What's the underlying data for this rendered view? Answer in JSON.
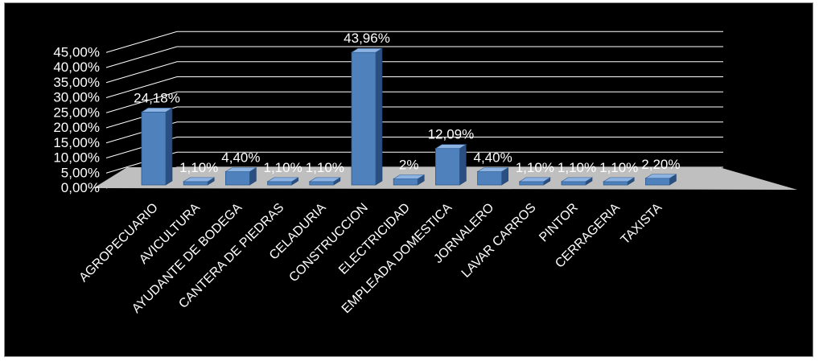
{
  "chart_data": {
    "type": "bar",
    "categories": [
      "AGROPECUARIO",
      "AVICULTURA",
      "AYUDANTE DE BODEGA",
      "CANTERA DE PIEDRAS",
      "CELADURIA",
      "CONSTRUCCION",
      "ELECTRICIDAD",
      "EMPLEADA DOMESTICA",
      "JORNALERO",
      "LAVAR CARROS",
      "PINTOR",
      "CERRAGERIA",
      "TAXISTA"
    ],
    "values": [
      24.18,
      1.1,
      4.4,
      1.1,
      1.1,
      43.96,
      2.0,
      12.09,
      4.4,
      1.1,
      1.1,
      1.1,
      2.2
    ],
    "data_labels": [
      "24,18%",
      "1,10%",
      "4,40%",
      "1,10%",
      "1,10%",
      "43,96%",
      "2%",
      "12,09%",
      "4,40%",
      "1,10%",
      "1,10%",
      "1,10%",
      "2,20%"
    ],
    "y_ticks": [
      "0,00%",
      "5,00%",
      "10,00%",
      "15,00%",
      "20,00%",
      "25,00%",
      "30,00%",
      "35,00%",
      "40,00%",
      "45,00%"
    ],
    "ylim": [
      0,
      45
    ],
    "grid": true,
    "legend": "none",
    "style": "3d-bar",
    "colors": {
      "background": "#000000",
      "bar_front": "#4f81bd",
      "bar_side": "#2a4f80",
      "bar_top": "#8db3e2",
      "floor": "#bfbfbf",
      "grid": "#ffffff",
      "text": "#ffffff"
    }
  }
}
